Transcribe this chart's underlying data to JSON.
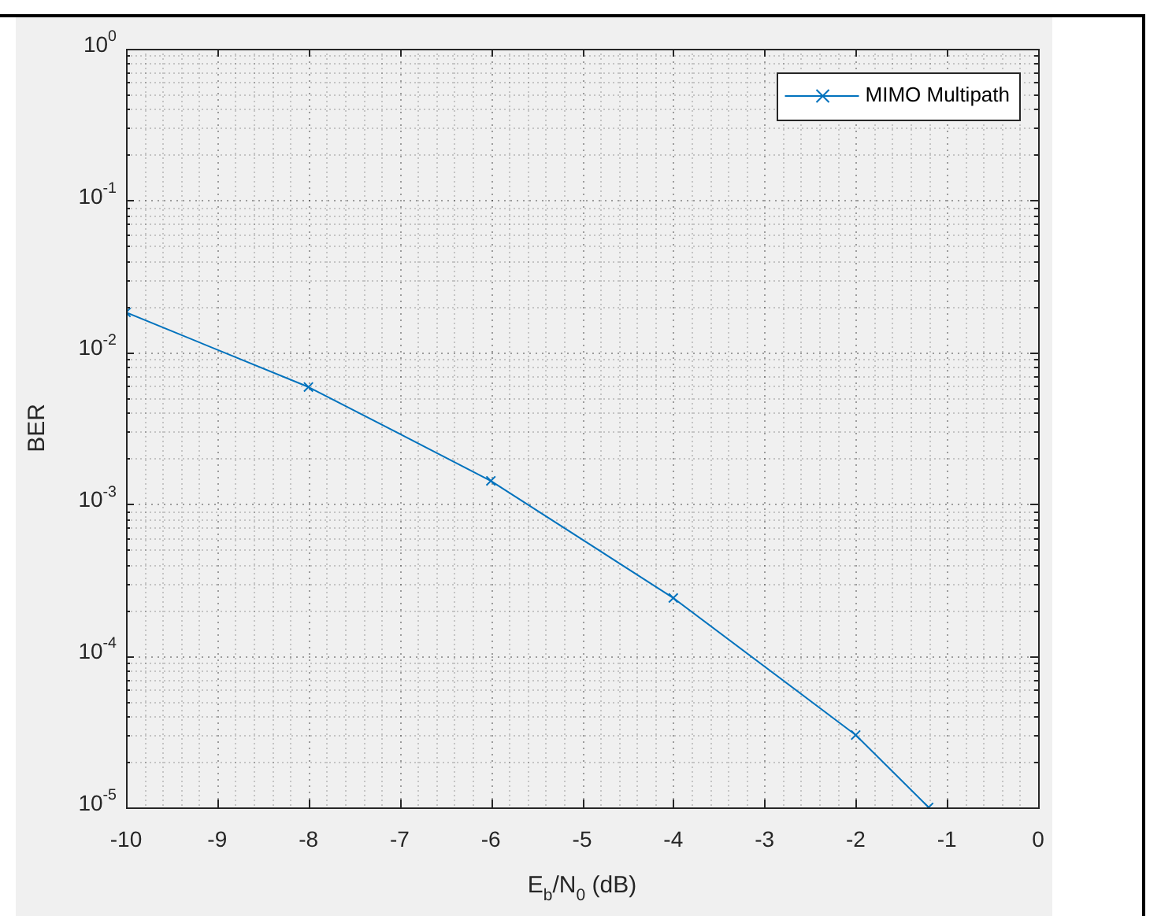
{
  "chart_data": {
    "type": "line",
    "xlabel": "E$_{b}$/N$_{0}$ (dB)",
    "ylabel": "BER",
    "x": [
      -10,
      -8,
      -6,
      -4,
      -2,
      -1.2
    ],
    "series": [
      {
        "name": "MIMO Multipath",
        "color": "#0072bd",
        "values": [
          0.0183,
          0.0059,
          0.00142,
          0.00024,
          3e-05,
          1e-05
        ]
      }
    ],
    "xlim": [
      -10,
      0
    ],
    "xticks": [
      -10,
      -9,
      -8,
      -7,
      -6,
      -5,
      -4,
      -3,
      -2,
      -1,
      0
    ],
    "ylim": [
      1e-05,
      1
    ],
    "yticks": [
      {
        "value": 1e-05,
        "label": "10$^{-5}$"
      },
      {
        "value": 0.0001,
        "label": "10$^{-4}$"
      },
      {
        "value": 0.001,
        "label": "10$^{-3}$"
      },
      {
        "value": 0.01,
        "label": "10$^{-2}$"
      },
      {
        "value": 0.1,
        "label": "10$^{-1}$"
      },
      {
        "value": 1,
        "label": "10$^{0}$"
      }
    ],
    "log": "y",
    "grid": true,
    "legend": "top right",
    "marker": "cross",
    "line_style": "solid"
  }
}
